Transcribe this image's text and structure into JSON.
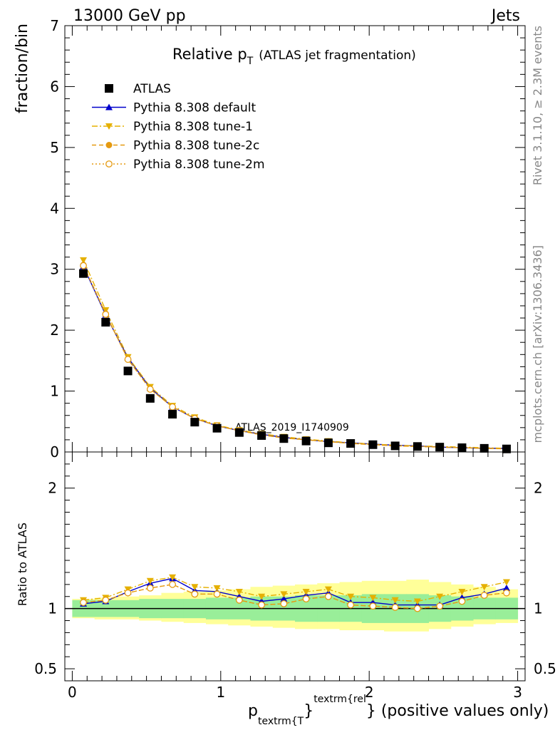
{
  "header": {
    "energy_label": "13000 GeV pp",
    "category_label": "Jets"
  },
  "side_labels": {
    "rivet": "Rivet 3.1.10, ≥ 2.3M events",
    "mcplots": "mcplots.cern.ch [arXiv:1306.3436]"
  },
  "chart_data": [
    {
      "type": "line",
      "title_main": "Relative p",
      "title_sub": "T",
      "title_rest": "(ATLAS jet fragmentation)",
      "ylabel": "fraction/bin",
      "analysis_label": "ATLAS_2019_I1740909",
      "ylim": [
        0,
        7
      ],
      "xlim": [
        -0.05,
        3.05
      ],
      "yticks": [
        0,
        1,
        2,
        3,
        4,
        5,
        6,
        7
      ],
      "x": [
        0.075,
        0.225,
        0.375,
        0.525,
        0.675,
        0.825,
        0.975,
        1.125,
        1.275,
        1.425,
        1.575,
        1.725,
        1.875,
        2.025,
        2.175,
        2.325,
        2.475,
        2.625,
        2.775,
        2.925
      ],
      "legend": {
        "position": "top-left"
      },
      "series": [
        {
          "name": "ATLAS",
          "marker": "square",
          "color": "#000000",
          "line": false,
          "values": [
            2.93,
            2.13,
            1.33,
            0.88,
            0.62,
            0.49,
            0.39,
            0.32,
            0.27,
            0.22,
            0.18,
            0.15,
            0.14,
            0.12,
            0.1,
            0.09,
            0.08,
            0.07,
            0.06,
            0.05
          ]
        },
        {
          "name": "Pythia 8.308 default",
          "marker": "triangle-up",
          "color": "#0000cc",
          "line": "solid",
          "values": [
            3.05,
            2.25,
            1.55,
            1.05,
            0.74,
            0.55,
            0.43,
            0.35,
            0.29,
            0.24,
            0.2,
            0.17,
            0.15,
            0.13,
            0.11,
            0.1,
            0.08,
            0.07,
            0.06,
            0.06
          ]
        },
        {
          "name": "Pythia 8.308 tune-1",
          "marker": "triangle-down",
          "color": "#e5b000",
          "line": "dashdot",
          "values": [
            3.15,
            2.33,
            1.56,
            1.07,
            0.76,
            0.57,
            0.44,
            0.36,
            0.3,
            0.25,
            0.21,
            0.18,
            0.15,
            0.13,
            0.11,
            0.1,
            0.09,
            0.08,
            0.07,
            0.06
          ]
        },
        {
          "name": "Pythia 8.308 tune-2c",
          "marker": "circle",
          "color": "#e59a10",
          "line": "dashed",
          "values": [
            3.07,
            2.27,
            1.52,
            1.03,
            0.74,
            0.55,
            0.43,
            0.35,
            0.28,
            0.23,
            0.2,
            0.17,
            0.14,
            0.12,
            0.1,
            0.09,
            0.08,
            0.07,
            0.06,
            0.05
          ]
        },
        {
          "name": "Pythia 8.308 tune-2m",
          "marker": "open-circle",
          "color": "#e59a10",
          "line": "dotted",
          "values": [
            3.06,
            2.26,
            1.52,
            1.03,
            0.74,
            0.55,
            0.43,
            0.35,
            0.28,
            0.23,
            0.2,
            0.17,
            0.14,
            0.12,
            0.1,
            0.09,
            0.08,
            0.07,
            0.06,
            0.05
          ]
        }
      ]
    },
    {
      "type": "line",
      "ylabel": "Ratio to ATLAS",
      "xlabel_main": "p",
      "xlabel_sub": "textrm{T",
      "xlabel_sup": "textrm{rel",
      "xlabel_close": "}",
      "xlabel_rest": "} (positive values only)",
      "ylim": [
        0.4,
        2.3
      ],
      "xlim": [
        -0.05,
        3.05
      ],
      "yticks": [
        "0.5",
        "1",
        "2"
      ],
      "xticks": [
        "0",
        "1",
        "2",
        "3"
      ],
      "x": [
        0.075,
        0.225,
        0.375,
        0.525,
        0.675,
        0.825,
        0.975,
        1.125,
        1.275,
        1.425,
        1.575,
        1.725,
        1.875,
        2.025,
        2.175,
        2.325,
        2.475,
        2.625,
        2.775,
        2.925
      ],
      "band_green": [
        [
          0.93,
          1.07
        ],
        [
          0.93,
          1.07
        ],
        [
          0.93,
          1.07
        ],
        [
          0.92,
          1.08
        ],
        [
          0.92,
          1.08
        ],
        [
          0.92,
          1.08
        ],
        [
          0.91,
          1.09
        ],
        [
          0.91,
          1.09
        ],
        [
          0.9,
          1.1
        ],
        [
          0.9,
          1.1
        ],
        [
          0.89,
          1.11
        ],
        [
          0.89,
          1.11
        ],
        [
          0.89,
          1.11
        ],
        [
          0.88,
          1.12
        ],
        [
          0.88,
          1.12
        ],
        [
          0.88,
          1.12
        ],
        [
          0.89,
          1.11
        ],
        [
          0.9,
          1.1
        ],
        [
          0.91,
          1.09
        ],
        [
          0.91,
          1.09
        ]
      ],
      "band_yellow": [
        [
          0.92,
          1.08
        ],
        [
          0.91,
          1.09
        ],
        [
          0.91,
          1.1
        ],
        [
          0.9,
          1.11
        ],
        [
          0.89,
          1.13
        ],
        [
          0.88,
          1.14
        ],
        [
          0.87,
          1.15
        ],
        [
          0.86,
          1.16
        ],
        [
          0.85,
          1.18
        ],
        [
          0.84,
          1.19
        ],
        [
          0.83,
          1.2
        ],
        [
          0.83,
          1.21
        ],
        [
          0.82,
          1.22
        ],
        [
          0.82,
          1.23
        ],
        [
          0.81,
          1.23
        ],
        [
          0.81,
          1.24
        ],
        [
          0.83,
          1.22
        ],
        [
          0.85,
          1.2
        ],
        [
          0.87,
          1.18
        ],
        [
          0.88,
          1.16
        ]
      ],
      "series": [
        {
          "name": "Pythia 8.308 default",
          "marker": "triangle-up",
          "color": "#0000cc",
          "line": "solid",
          "values": [
            1.04,
            1.06,
            1.14,
            1.21,
            1.25,
            1.15,
            1.14,
            1.1,
            1.06,
            1.08,
            1.11,
            1.13,
            1.05,
            1.05,
            1.03,
            1.03,
            1.03,
            1.09,
            1.12,
            1.17
          ]
        },
        {
          "name": "Pythia 8.308 tune-1",
          "marker": "triangle-down",
          "color": "#e5b000",
          "line": "dashdot",
          "values": [
            1.07,
            1.09,
            1.16,
            1.23,
            1.26,
            1.18,
            1.17,
            1.14,
            1.1,
            1.12,
            1.14,
            1.16,
            1.1,
            1.09,
            1.07,
            1.06,
            1.1,
            1.14,
            1.18,
            1.22
          ]
        },
        {
          "name": "Pythia 8.308 tune-2c",
          "marker": "circle",
          "color": "#e59a10",
          "line": "dashed",
          "values": [
            1.05,
            1.07,
            1.13,
            1.17,
            1.2,
            1.12,
            1.12,
            1.07,
            1.03,
            1.04,
            1.08,
            1.1,
            1.03,
            1.02,
            1.01,
            1.0,
            1.02,
            1.06,
            1.11,
            1.13
          ]
        },
        {
          "name": "Pythia 8.308 tune-2m",
          "marker": "open-circle",
          "color": "#e59a10",
          "line": "dotted",
          "values": [
            1.05,
            1.07,
            1.13,
            1.17,
            1.2,
            1.12,
            1.12,
            1.07,
            1.03,
            1.04,
            1.08,
            1.1,
            1.03,
            1.02,
            1.01,
            1.0,
            1.02,
            1.06,
            1.11,
            1.13
          ]
        }
      ]
    }
  ]
}
